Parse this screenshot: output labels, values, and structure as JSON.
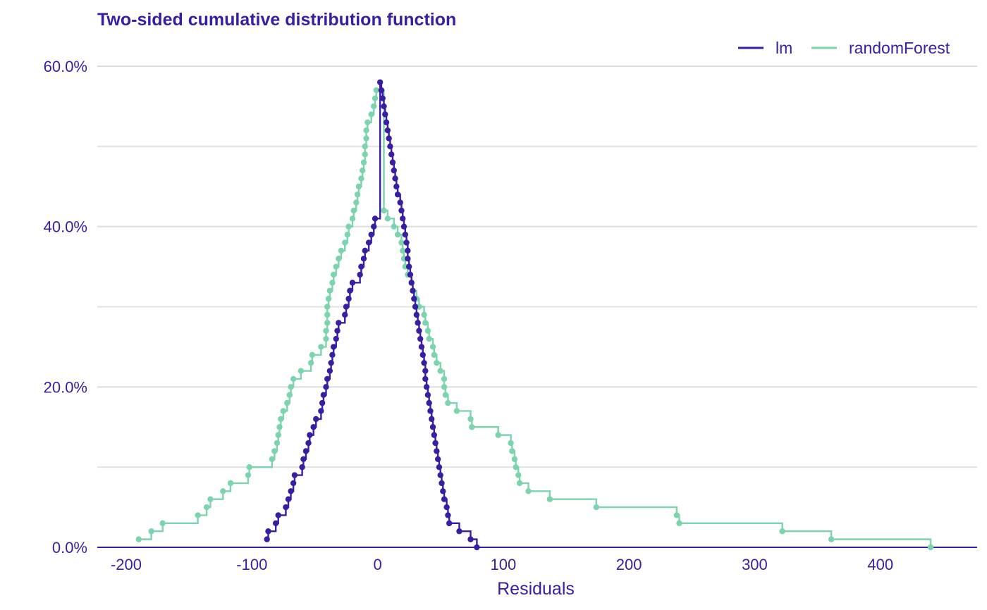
{
  "chart_data": {
    "type": "line",
    "title": "Two-sided cumulative distribution function",
    "xlabel": "Residuals",
    "ylabel": "",
    "xlim": [
      -223,
      477
    ],
    "ylim": [
      0,
      0.6
    ],
    "x_ticks": [
      -200,
      -100,
      0,
      100,
      200,
      300,
      400
    ],
    "x_tick_labels": [
      "-200",
      "-100",
      "0",
      "100",
      "200",
      "300",
      "400"
    ],
    "y_ticks": [
      0,
      0.2,
      0.4,
      0.6
    ],
    "y_tick_labels": [
      "0.0%",
      "20.0%",
      "40.0%",
      "60.0%"
    ],
    "y_minor_gridlines": [
      0.1,
      0.3,
      0.5
    ],
    "grid": true,
    "legend_position": "top-right",
    "colors": {
      "lm": "#371ea3",
      "randomForest": "#7bd4ad"
    },
    "series": [
      {
        "name": "lm",
        "color": "#371ea3",
        "points": [
          [
            -88,
            0.01
          ],
          [
            -87,
            0.02
          ],
          [
            -81,
            0.03
          ],
          [
            -79,
            0.04
          ],
          [
            -73,
            0.05
          ],
          [
            -71,
            0.06
          ],
          [
            -69,
            0.07
          ],
          [
            -67,
            0.08
          ],
          [
            -66,
            0.09
          ],
          [
            -60,
            0.1
          ],
          [
            -59,
            0.11
          ],
          [
            -57,
            0.12
          ],
          [
            -55,
            0.13
          ],
          [
            -54,
            0.14
          ],
          [
            -51,
            0.15
          ],
          [
            -49,
            0.16
          ],
          [
            -45,
            0.17
          ],
          [
            -44,
            0.18
          ],
          [
            -43,
            0.19
          ],
          [
            -41,
            0.2
          ],
          [
            -40,
            0.21
          ],
          [
            -38,
            0.22
          ],
          [
            -37,
            0.23
          ],
          [
            -36,
            0.24
          ],
          [
            -35,
            0.25
          ],
          [
            -33,
            0.26
          ],
          [
            -32,
            0.27
          ],
          [
            -31,
            0.28
          ],
          [
            -26,
            0.29
          ],
          [
            -25,
            0.3
          ],
          [
            -23,
            0.31
          ],
          [
            -22,
            0.32
          ],
          [
            -20,
            0.33
          ],
          [
            -14,
            0.34
          ],
          [
            -13,
            0.35
          ],
          [
            -11,
            0.36
          ],
          [
            -10,
            0.37
          ],
          [
            -7,
            0.38
          ],
          [
            -5,
            0.39
          ],
          [
            -3,
            0.4
          ],
          [
            -2,
            0.41
          ],
          [
            2,
            0.58
          ],
          [
            3,
            0.57
          ],
          [
            4,
            0.56
          ],
          [
            5,
            0.55
          ],
          [
            6,
            0.54
          ],
          [
            7,
            0.53
          ],
          [
            8,
            0.52
          ],
          [
            9,
            0.51
          ],
          [
            10,
            0.5
          ],
          [
            11,
            0.49
          ],
          [
            12,
            0.48
          ],
          [
            13,
            0.47
          ],
          [
            14,
            0.46
          ],
          [
            15,
            0.45
          ],
          [
            16,
            0.44
          ],
          [
            18,
            0.43
          ],
          [
            19,
            0.42
          ],
          [
            20,
            0.41
          ],
          [
            21,
            0.4
          ],
          [
            22,
            0.39
          ],
          [
            23,
            0.38
          ],
          [
            24,
            0.37
          ],
          [
            24,
            0.36
          ],
          [
            25,
            0.35
          ],
          [
            26,
            0.34
          ],
          [
            27,
            0.33
          ],
          [
            28,
            0.32
          ],
          [
            29,
            0.31
          ],
          [
            30,
            0.3
          ],
          [
            31,
            0.29
          ],
          [
            32,
            0.28
          ],
          [
            33,
            0.27
          ],
          [
            34,
            0.26
          ],
          [
            35,
            0.25
          ],
          [
            36,
            0.24
          ],
          [
            37,
            0.23
          ],
          [
            38,
            0.22
          ],
          [
            38,
            0.21
          ],
          [
            39,
            0.2
          ],
          [
            40,
            0.19
          ],
          [
            41,
            0.18
          ],
          [
            42,
            0.17
          ],
          [
            43,
            0.16
          ],
          [
            44,
            0.15
          ],
          [
            45,
            0.14
          ],
          [
            46,
            0.13
          ],
          [
            47,
            0.12
          ],
          [
            48,
            0.11
          ],
          [
            49,
            0.1
          ],
          [
            50,
            0.09
          ],
          [
            51,
            0.08
          ],
          [
            52,
            0.07
          ],
          [
            53,
            0.06
          ],
          [
            55,
            0.05
          ],
          [
            56,
            0.04
          ],
          [
            57,
            0.03
          ],
          [
            65,
            0.02
          ],
          [
            74,
            0.01
          ],
          [
            79,
            0.0
          ]
        ]
      },
      {
        "name": "randomForest",
        "color": "#7bd4ad",
        "points": [
          [
            -190,
            0.01
          ],
          [
            -180,
            0.02
          ],
          [
            -171,
            0.03
          ],
          [
            -143,
            0.04
          ],
          [
            -136,
            0.05
          ],
          [
            -133,
            0.06
          ],
          [
            -123,
            0.07
          ],
          [
            -117,
            0.08
          ],
          [
            -103,
            0.09
          ],
          [
            -102,
            0.1
          ],
          [
            -84,
            0.11
          ],
          [
            -82,
            0.12
          ],
          [
            -80,
            0.13
          ],
          [
            -79,
            0.14
          ],
          [
            -78,
            0.15
          ],
          [
            -77,
            0.16
          ],
          [
            -75,
            0.17
          ],
          [
            -72,
            0.18
          ],
          [
            -70,
            0.19
          ],
          [
            -69,
            0.2
          ],
          [
            -67,
            0.21
          ],
          [
            -61,
            0.22
          ],
          [
            -53,
            0.23
          ],
          [
            -52,
            0.24
          ],
          [
            -45,
            0.25
          ],
          [
            -41,
            0.26
          ],
          [
            -41,
            0.27
          ],
          [
            -40,
            0.28
          ],
          [
            -40,
            0.29
          ],
          [
            -40,
            0.3
          ],
          [
            -39,
            0.31
          ],
          [
            -38,
            0.32
          ],
          [
            -36,
            0.33
          ],
          [
            -35,
            0.34
          ],
          [
            -33,
            0.35
          ],
          [
            -31,
            0.36
          ],
          [
            -29,
            0.37
          ],
          [
            -26,
            0.38
          ],
          [
            -24,
            0.39
          ],
          [
            -23,
            0.4
          ],
          [
            -20,
            0.41
          ],
          [
            -19,
            0.42
          ],
          [
            -17,
            0.43
          ],
          [
            -16,
            0.44
          ],
          [
            -15,
            0.45
          ],
          [
            -13,
            0.46
          ],
          [
            -12,
            0.47
          ],
          [
            -11,
            0.48
          ],
          [
            -10,
            0.49
          ],
          [
            -10,
            0.5
          ],
          [
            -9,
            0.51
          ],
          [
            -9,
            0.52
          ],
          [
            -8,
            0.53
          ],
          [
            -5,
            0.54
          ],
          [
            -3,
            0.55
          ],
          [
            -2,
            0.56
          ],
          [
            -1,
            0.57
          ],
          [
            3,
            0.57
          ],
          [
            5,
            0.42
          ],
          [
            8,
            0.41
          ],
          [
            13,
            0.4
          ],
          [
            16,
            0.39
          ],
          [
            19,
            0.38
          ],
          [
            20,
            0.37
          ],
          [
            21,
            0.36
          ],
          [
            22,
            0.35
          ],
          [
            24,
            0.34
          ],
          [
            27,
            0.33
          ],
          [
            28,
            0.32
          ],
          [
            31,
            0.31
          ],
          [
            33,
            0.3
          ],
          [
            37,
            0.29
          ],
          [
            38,
            0.28
          ],
          [
            40,
            0.27
          ],
          [
            41,
            0.26
          ],
          [
            44,
            0.25
          ],
          [
            45,
            0.24
          ],
          [
            47,
            0.23
          ],
          [
            50,
            0.22
          ],
          [
            53,
            0.21
          ],
          [
            53,
            0.2
          ],
          [
            54,
            0.19
          ],
          [
            56,
            0.18
          ],
          [
            63,
            0.17
          ],
          [
            74,
            0.16
          ],
          [
            75,
            0.15
          ],
          [
            96,
            0.14
          ],
          [
            106,
            0.13
          ],
          [
            107,
            0.12
          ],
          [
            109,
            0.11
          ],
          [
            110,
            0.1
          ],
          [
            112,
            0.09
          ],
          [
            113,
            0.08
          ],
          [
            120,
            0.07
          ],
          [
            137,
            0.06
          ],
          [
            174,
            0.05
          ],
          [
            238,
            0.04
          ],
          [
            240,
            0.03
          ],
          [
            322,
            0.02
          ],
          [
            361,
            0.01
          ],
          [
            440,
            0.0
          ]
        ]
      }
    ]
  }
}
